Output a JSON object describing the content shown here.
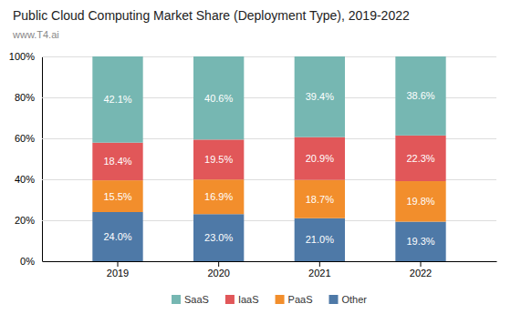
{
  "chart_data": {
    "type": "bar",
    "stacked": true,
    "title": "Public Cloud Computing Market Share (Deployment Type), 2019-2022",
    "subtitle": "www.T4.ai",
    "categories": [
      "2019",
      "2020",
      "2021",
      "2022"
    ],
    "series": [
      {
        "name": "Other",
        "values": [
          24.0,
          23.0,
          21.0,
          19.3
        ],
        "value_labels": [
          "24.0%",
          "23.0%",
          "21.0%",
          "19.3%"
        ]
      },
      {
        "name": "PaaS",
        "values": [
          15.5,
          16.9,
          18.7,
          19.8
        ],
        "value_labels": [
          "15.5%",
          "16.9%",
          "18.7%",
          "19.8%"
        ]
      },
      {
        "name": "IaaS",
        "values": [
          18.4,
          19.5,
          20.9,
          22.3
        ],
        "value_labels": [
          "18.4%",
          "19.5%",
          "20.9%",
          "22.3%"
        ]
      },
      {
        "name": "SaaS",
        "values": [
          42.1,
          40.6,
          39.4,
          38.6
        ],
        "value_labels": [
          "42.1%",
          "40.6%",
          "39.4%",
          "38.6%"
        ]
      }
    ],
    "ylim": [
      0,
      100
    ],
    "yticks": [
      {
        "value": 0,
        "label": "0%"
      },
      {
        "value": 20,
        "label": "20%"
      },
      {
        "value": 40,
        "label": "40%"
      },
      {
        "value": 60,
        "label": "60%"
      },
      {
        "value": 80,
        "label": "80%"
      },
      {
        "value": 100,
        "label": "100%"
      }
    ],
    "grid": true,
    "data_labels": true,
    "legend": "bottom"
  }
}
